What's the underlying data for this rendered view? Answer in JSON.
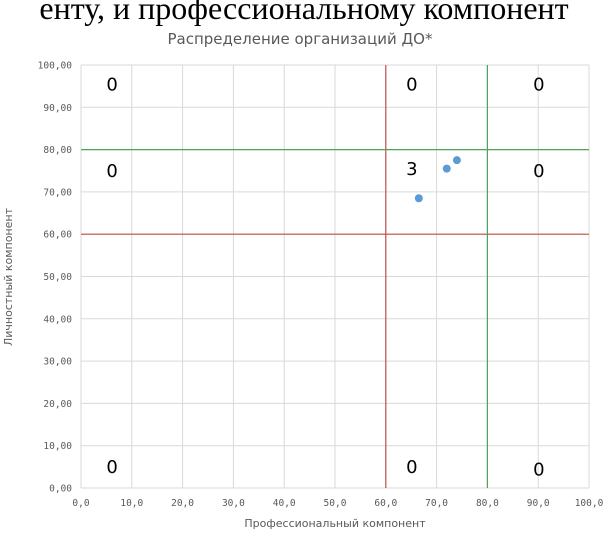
{
  "header_text": "енту, и профессиональному компонент",
  "chart_data": {
    "type": "scatter",
    "title": "Распределение организаций ДО*",
    "xlabel": "Профессиональный компонент",
    "ylabel": "Личностный компонент",
    "xlim": [
      0,
      100
    ],
    "ylim": [
      0,
      100
    ],
    "x_tick_labels": [
      "0,0",
      "10,0",
      "20,0",
      "30,0",
      "40,0",
      "50,0",
      "60,0",
      "70,0",
      "80,0",
      "90,0",
      "100,0"
    ],
    "y_tick_labels": [
      "0,00",
      "10,00",
      "20,00",
      "30,00",
      "40,00",
      "50,00",
      "60,00",
      "70,00",
      "80,00",
      "90,00",
      "100,00"
    ],
    "grid": true,
    "points": [
      {
        "x": 66.5,
        "y": 68.5
      },
      {
        "x": 72.0,
        "y": 75.5
      },
      {
        "x": 74.0,
        "y": 77.5
      }
    ],
    "point_color": "#5b9bd5",
    "reference_lines": [
      {
        "axis": "x",
        "value": 60,
        "color": "#c0504d"
      },
      {
        "axis": "y",
        "value": 60,
        "color": "#c0504d"
      },
      {
        "axis": "x",
        "value": 80,
        "color": "#4ea25e"
      },
      {
        "axis": "y",
        "value": 80,
        "color": "#4ea25e"
      }
    ],
    "quadrant_counts": [
      {
        "x": 5,
        "y": 94,
        "text": "0"
      },
      {
        "x": 64,
        "y": 94,
        "text": "0"
      },
      {
        "x": 89,
        "y": 94,
        "text": "0"
      },
      {
        "x": 5,
        "y": 73.5,
        "text": "0"
      },
      {
        "x": 64,
        "y": 74,
        "text": "3"
      },
      {
        "x": 89,
        "y": 73.5,
        "text": "0"
      },
      {
        "x": 5,
        "y": 3.5,
        "text": "0"
      },
      {
        "x": 64,
        "y": 3.5,
        "text": "0"
      },
      {
        "x": 89,
        "y": 3,
        "text": "0"
      }
    ]
  }
}
